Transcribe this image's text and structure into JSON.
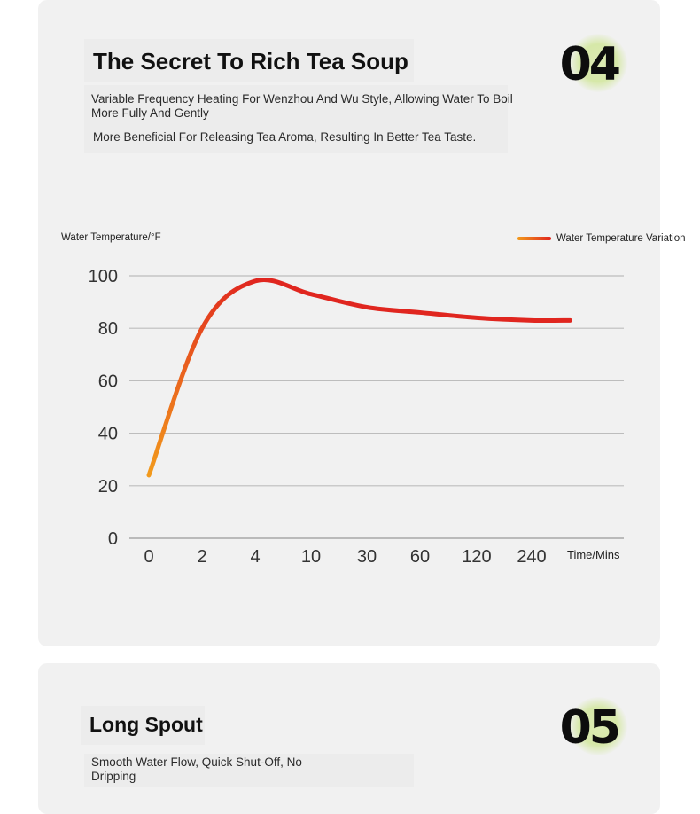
{
  "section1": {
    "title": "The Secret To Rich Tea Soup",
    "desc_line1": "Variable Frequency Heating For Wenzhou And Wu Style, Allowing Water To Boil More Fully And Gently",
    "desc_line2": "More Beneficial For Releasing Tea Aroma, Resulting In Better Tea Taste.",
    "badge": "04"
  },
  "section2": {
    "title": "Long Spout",
    "desc": "Smooth Water Flow, Quick Shut-Off, No Dripping",
    "badge": "05"
  },
  "colors": {
    "curve_start": "#f29a1c",
    "curve_end": "#e0261f",
    "badge_glow": "#d6e8a8",
    "card_bg": "#f1f1f1"
  },
  "chart_data": {
    "type": "line",
    "ylabel": "Water Temperature/°F",
    "xlabel": "Time/Mins",
    "categories": [
      "0",
      "2",
      "4",
      "10",
      "30",
      "60",
      "120",
      "240"
    ],
    "yticks": [
      0,
      20,
      40,
      60,
      80,
      100
    ],
    "ylim": [
      0,
      100
    ],
    "grid": true,
    "legend_position": "top-right",
    "series": [
      {
        "name": "Water Temperature Variation",
        "x": [
          0,
          1,
          2,
          3,
          4,
          5,
          6,
          7,
          7.7
        ],
        "y": [
          24,
          80,
          98,
          93,
          88,
          86,
          84,
          83,
          83
        ]
      }
    ]
  }
}
